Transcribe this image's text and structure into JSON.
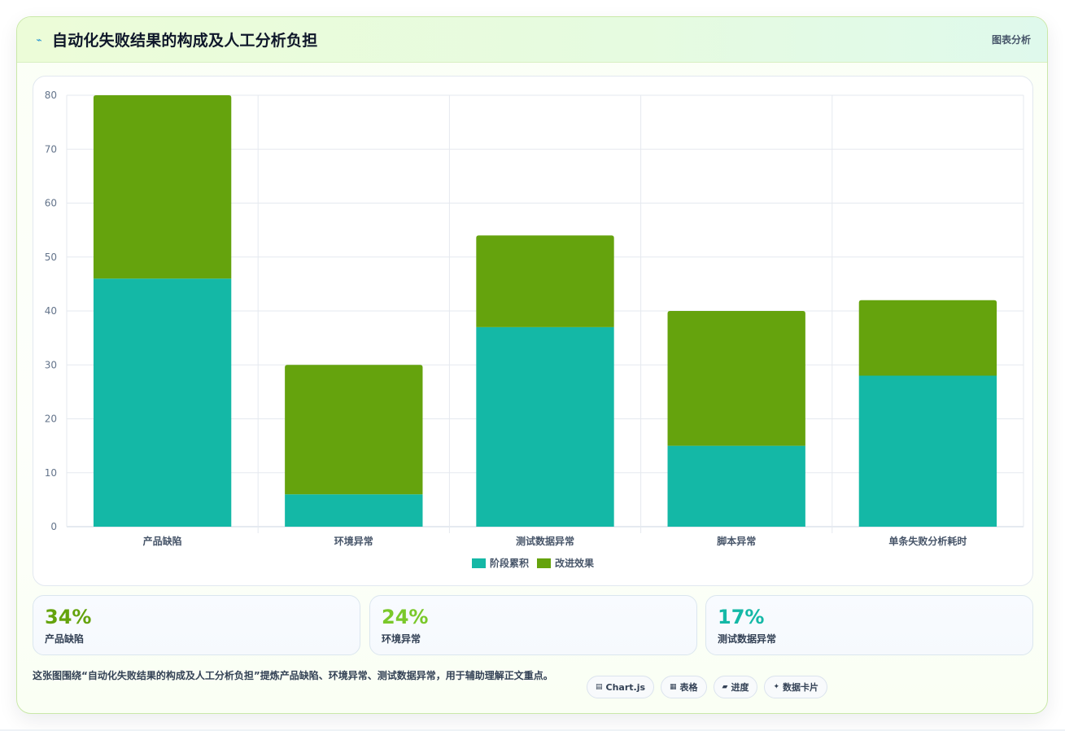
{
  "header": {
    "icon": "chart-line-icon",
    "title": "自动化失败结果的构成及人工分析负担",
    "tag": "图表分析"
  },
  "chart_data": {
    "type": "bar",
    "stacked": true,
    "categories": [
      "产品缺陷",
      "环境异常",
      "测试数据异常",
      "脚本异常",
      "单条失败分析耗时"
    ],
    "series": [
      {
        "name": "阶段累积",
        "values": [
          46,
          6,
          37,
          15,
          28
        ],
        "color": "#14b8a6"
      },
      {
        "name": "改进效果",
        "values": [
          34,
          24,
          17,
          25,
          14
        ],
        "color": "#65a30d"
      }
    ],
    "ylim": [
      0,
      80
    ],
    "yticks": [
      0,
      10,
      20,
      30,
      40,
      50,
      60,
      70,
      80
    ],
    "grid": true,
    "legend": "bottom"
  },
  "stats": [
    {
      "value": "34%",
      "label": "产品缺陷",
      "color": "#65a30d"
    },
    {
      "value": "24%",
      "label": "环境异常",
      "color": "#7ac82a"
    },
    {
      "value": "17%",
      "label": "测试数据异常",
      "color": "#14b8a6"
    }
  ],
  "footer": {
    "text": "这张图围绕“自动化失败结果的构成及人工分析负担”提炼产品缺陷、环境异常、测试数据异常，用于辅助理解正文重点。"
  },
  "chips": [
    {
      "icon": "chart-icon",
      "glyph": "▤",
      "label": "Chart.js"
    },
    {
      "icon": "table-icon",
      "glyph": "▦",
      "label": "表格"
    },
    {
      "icon": "progress-icon",
      "glyph": "▰",
      "label": "进度"
    },
    {
      "icon": "data-card-icon",
      "glyph": "✦",
      "label": "数据卡片"
    }
  ]
}
